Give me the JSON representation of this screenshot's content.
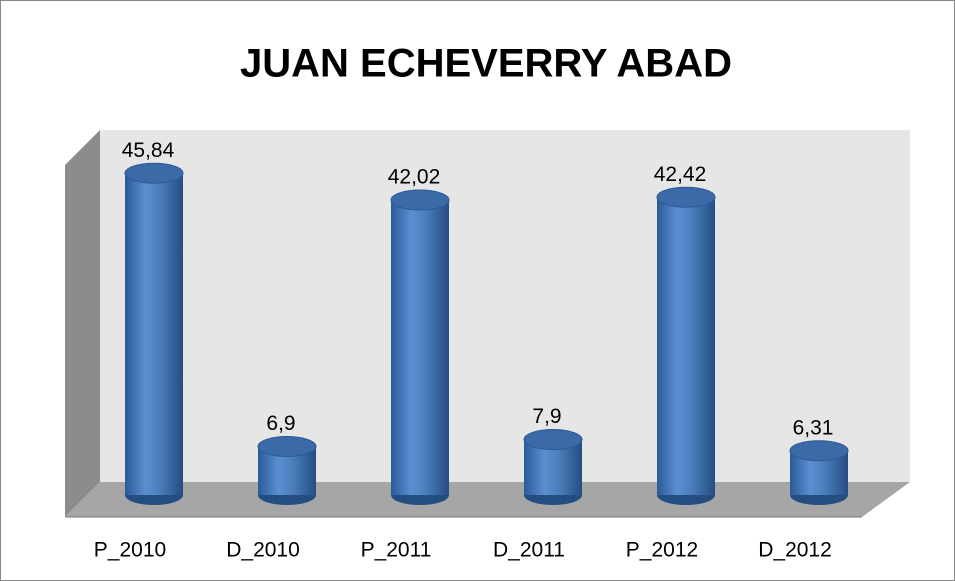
{
  "chart_data": {
    "type": "bar3d",
    "title": "JUAN ECHEVERRY ABAD",
    "categories": [
      "P_2010",
      "D_2010",
      "P_2011",
      "D_2011",
      "P_2012",
      "D_2012"
    ],
    "values": [
      45.84,
      6.9,
      42.02,
      7.9,
      42.42,
      6.31
    ],
    "value_labels": [
      "45,84",
      "6,9",
      "42,02",
      "7,9",
      "42,42",
      "6,31"
    ],
    "color": "#4a7ebb"
  }
}
